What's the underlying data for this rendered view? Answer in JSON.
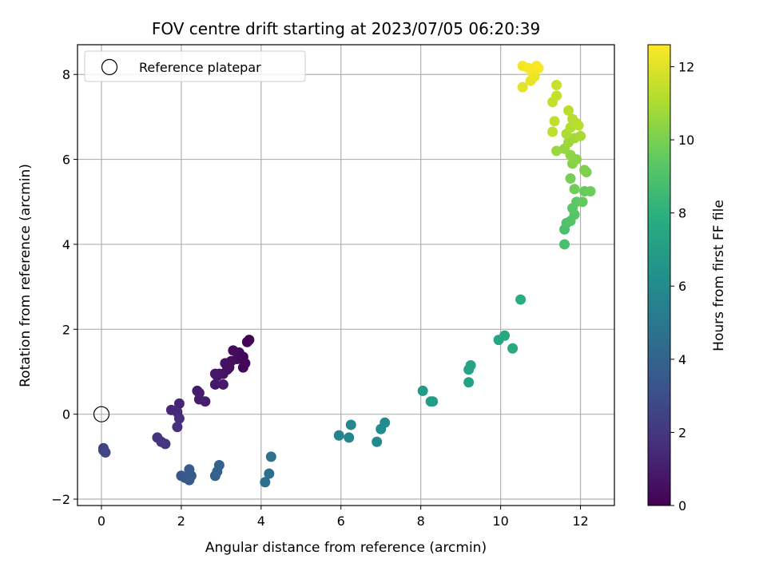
{
  "chart_data": {
    "type": "scatter",
    "title": "FOV centre drift starting at 2023/07/05 06:20:39",
    "xlabel": "Angular distance from reference (arcmin)",
    "ylabel": "Rotation from reference (arcmin)",
    "xlim": [
      -0.6,
      12.85
    ],
    "ylim": [
      -2.15,
      8.7
    ],
    "xticks": [
      0,
      2,
      4,
      6,
      8,
      10,
      12
    ],
    "yticks": [
      -2,
      0,
      2,
      4,
      6,
      8
    ],
    "grid": true,
    "legend": {
      "placement": "top-left",
      "entries": [
        "Reference platepar"
      ]
    },
    "reference_point": {
      "x": 0,
      "y": 0,
      "label": "Reference platepar"
    },
    "colorbar": {
      "label": "Hours from first FF file",
      "range": [
        0,
        12.6
      ],
      "ticks": [
        0,
        2,
        4,
        6,
        8,
        10,
        12
      ],
      "colormap": "viridis"
    },
    "points": [
      {
        "x": 3.7,
        "y": 1.75,
        "h": 0.05
      },
      {
        "x": 3.65,
        "y": 1.7,
        "h": 0.1
      },
      {
        "x": 3.55,
        "y": 1.35,
        "h": 0.15
      },
      {
        "x": 3.6,
        "y": 1.2,
        "h": 0.2
      },
      {
        "x": 3.55,
        "y": 1.1,
        "h": 0.25
      },
      {
        "x": 3.45,
        "y": 1.45,
        "h": 0.3
      },
      {
        "x": 3.4,
        "y": 1.3,
        "h": 0.35
      },
      {
        "x": 3.3,
        "y": 1.5,
        "h": 0.4
      },
      {
        "x": 3.25,
        "y": 1.25,
        "h": 0.45
      },
      {
        "x": 3.2,
        "y": 1.1,
        "h": 0.5
      },
      {
        "x": 3.15,
        "y": 1.05,
        "h": 0.55
      },
      {
        "x": 3.1,
        "y": 1.2,
        "h": 0.6
      },
      {
        "x": 3.05,
        "y": 0.95,
        "h": 0.65
      },
      {
        "x": 2.95,
        "y": 0.95,
        "h": 0.7
      },
      {
        "x": 2.9,
        "y": 0.9,
        "h": 0.75
      },
      {
        "x": 2.85,
        "y": 0.95,
        "h": 0.8
      },
      {
        "x": 3.05,
        "y": 0.7,
        "h": 0.85
      },
      {
        "x": 2.85,
        "y": 0.7,
        "h": 0.9
      },
      {
        "x": 2.4,
        "y": 0.55,
        "h": 0.95
      },
      {
        "x": 2.45,
        "y": 0.5,
        "h": 1.0
      },
      {
        "x": 2.45,
        "y": 0.35,
        "h": 1.05
      },
      {
        "x": 2.6,
        "y": 0.3,
        "h": 1.1
      },
      {
        "x": 1.95,
        "y": 0.25,
        "h": 1.3
      },
      {
        "x": 1.75,
        "y": 0.1,
        "h": 1.4
      },
      {
        "x": 1.9,
        "y": 0.05,
        "h": 1.5
      },
      {
        "x": 1.95,
        "y": -0.1,
        "h": 1.6
      },
      {
        "x": 1.9,
        "y": -0.3,
        "h": 1.7
      },
      {
        "x": 1.4,
        "y": -0.55,
        "h": 1.85
      },
      {
        "x": 1.5,
        "y": -0.65,
        "h": 1.95
      },
      {
        "x": 1.6,
        "y": -0.7,
        "h": 2.05
      },
      {
        "x": 0.05,
        "y": -0.8,
        "h": 2.5
      },
      {
        "x": 0.05,
        "y": -0.85,
        "h": 2.55
      },
      {
        "x": 0.1,
        "y": -0.9,
        "h": 2.6
      },
      {
        "x": 2.0,
        "y": -1.45,
        "h": 3.4
      },
      {
        "x": 2.1,
        "y": -1.5,
        "h": 3.45
      },
      {
        "x": 2.2,
        "y": -1.55,
        "h": 3.5
      },
      {
        "x": 2.25,
        "y": -1.45,
        "h": 3.55
      },
      {
        "x": 2.2,
        "y": -1.3,
        "h": 3.6
      },
      {
        "x": 2.15,
        "y": -1.5,
        "h": 3.65
      },
      {
        "x": 2.85,
        "y": -1.45,
        "h": 3.9
      },
      {
        "x": 2.9,
        "y": -1.35,
        "h": 3.95
      },
      {
        "x": 2.95,
        "y": -1.2,
        "h": 4.0
      },
      {
        "x": 4.1,
        "y": -1.6,
        "h": 4.6
      },
      {
        "x": 4.2,
        "y": -1.4,
        "h": 4.65
      },
      {
        "x": 4.25,
        "y": -1.0,
        "h": 4.7
      },
      {
        "x": 5.95,
        "y": -0.5,
        "h": 5.6
      },
      {
        "x": 6.2,
        "y": -0.55,
        "h": 5.7
      },
      {
        "x": 6.25,
        "y": -0.25,
        "h": 5.75
      },
      {
        "x": 6.9,
        "y": -0.65,
        "h": 6.0
      },
      {
        "x": 7.0,
        "y": -0.35,
        "h": 6.05
      },
      {
        "x": 7.1,
        "y": -0.2,
        "h": 6.1
      },
      {
        "x": 8.05,
        "y": 0.55,
        "h": 6.8
      },
      {
        "x": 8.25,
        "y": 0.3,
        "h": 6.9
      },
      {
        "x": 8.3,
        "y": 0.3,
        "h": 6.95
      },
      {
        "x": 9.2,
        "y": 0.75,
        "h": 7.2
      },
      {
        "x": 9.2,
        "y": 1.05,
        "h": 7.25
      },
      {
        "x": 9.25,
        "y": 1.15,
        "h": 7.3
      },
      {
        "x": 9.95,
        "y": 1.75,
        "h": 7.5
      },
      {
        "x": 10.1,
        "y": 1.85,
        "h": 7.55
      },
      {
        "x": 10.3,
        "y": 1.55,
        "h": 7.6
      },
      {
        "x": 10.5,
        "y": 2.7,
        "h": 7.8
      },
      {
        "x": 11.6,
        "y": 4.0,
        "h": 8.8
      },
      {
        "x": 11.6,
        "y": 4.35,
        "h": 8.9
      },
      {
        "x": 11.65,
        "y": 4.5,
        "h": 9.0
      },
      {
        "x": 11.75,
        "y": 4.55,
        "h": 9.1
      },
      {
        "x": 11.85,
        "y": 4.7,
        "h": 9.2
      },
      {
        "x": 11.8,
        "y": 4.85,
        "h": 9.3
      },
      {
        "x": 11.9,
        "y": 5.0,
        "h": 9.4
      },
      {
        "x": 12.05,
        "y": 5.0,
        "h": 9.5
      },
      {
        "x": 12.1,
        "y": 5.25,
        "h": 9.6
      },
      {
        "x": 12.25,
        "y": 5.25,
        "h": 9.7
      },
      {
        "x": 11.85,
        "y": 5.3,
        "h": 9.8
      },
      {
        "x": 11.75,
        "y": 5.55,
        "h": 9.9
      },
      {
        "x": 12.15,
        "y": 5.7,
        "h": 10.0
      },
      {
        "x": 12.1,
        "y": 5.75,
        "h": 10.1
      },
      {
        "x": 11.8,
        "y": 5.9,
        "h": 10.2
      },
      {
        "x": 11.9,
        "y": 6.0,
        "h": 10.3
      },
      {
        "x": 11.75,
        "y": 6.1,
        "h": 10.4
      },
      {
        "x": 11.6,
        "y": 6.25,
        "h": 10.5
      },
      {
        "x": 11.4,
        "y": 6.2,
        "h": 10.6
      },
      {
        "x": 11.7,
        "y": 6.4,
        "h": 10.7
      },
      {
        "x": 11.85,
        "y": 6.5,
        "h": 10.8
      },
      {
        "x": 12.0,
        "y": 6.55,
        "h": 10.9
      },
      {
        "x": 11.65,
        "y": 6.6,
        "h": 11.0
      },
      {
        "x": 11.75,
        "y": 6.75,
        "h": 11.1
      },
      {
        "x": 11.9,
        "y": 6.85,
        "h": 11.15
      },
      {
        "x": 11.8,
        "y": 6.95,
        "h": 11.2
      },
      {
        "x": 11.95,
        "y": 6.8,
        "h": 11.25
      },
      {
        "x": 11.7,
        "y": 7.15,
        "h": 11.3
      },
      {
        "x": 11.3,
        "y": 6.65,
        "h": 11.35
      },
      {
        "x": 11.35,
        "y": 6.9,
        "h": 11.4
      },
      {
        "x": 11.3,
        "y": 7.35,
        "h": 11.45
      },
      {
        "x": 11.4,
        "y": 7.5,
        "h": 11.5
      },
      {
        "x": 11.4,
        "y": 7.75,
        "h": 11.6
      },
      {
        "x": 10.55,
        "y": 7.7,
        "h": 12.0
      },
      {
        "x": 10.75,
        "y": 7.85,
        "h": 12.1
      },
      {
        "x": 10.85,
        "y": 7.95,
        "h": 12.2
      },
      {
        "x": 10.8,
        "y": 8.05,
        "h": 12.3
      },
      {
        "x": 10.55,
        "y": 8.2,
        "h": 12.4
      },
      {
        "x": 10.7,
        "y": 8.15,
        "h": 12.45
      },
      {
        "x": 10.9,
        "y": 8.2,
        "h": 12.5
      },
      {
        "x": 10.95,
        "y": 8.15,
        "h": 12.55
      }
    ]
  }
}
